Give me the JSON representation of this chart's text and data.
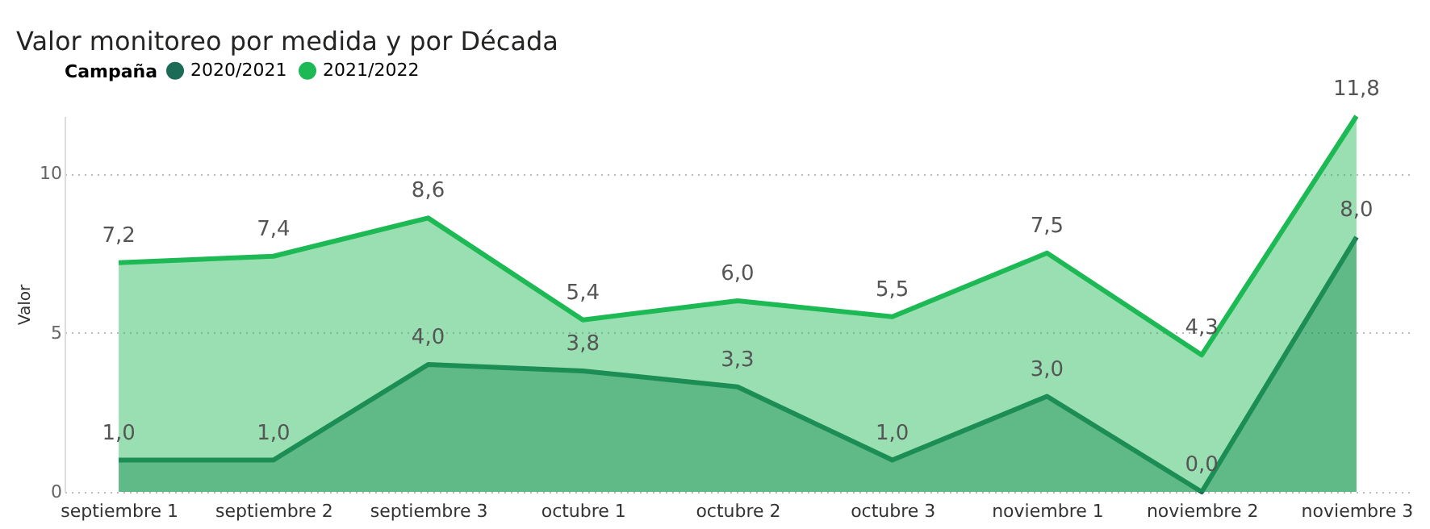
{
  "chart_data": {
    "type": "area",
    "title": "Valor monitoreo por medida y por Década",
    "ylabel": "Valor",
    "legend_title": "Campaña",
    "legend": "top left",
    "grid": "y",
    "ylim": [
      0,
      11.8
    ],
    "yticks": [
      0,
      5,
      10
    ],
    "categories": [
      "septiembre 1",
      "septiembre 2",
      "septiembre 3",
      "octubre 1",
      "octubre 2",
      "octubre 3",
      "noviembre 1",
      "noviembre 2",
      "noviembre 3"
    ],
    "series": [
      {
        "name": "2020/2021",
        "color": "#1b6b57",
        "values": [
          1.0,
          1.0,
          4.0,
          3.8,
          3.3,
          1.0,
          3.0,
          0.0,
          8.0
        ],
        "value_labels": [
          "1,0",
          "1,0",
          "4,0",
          "3,8",
          "3,3",
          "1,0",
          "3,0",
          "0,0",
          "8,0"
        ]
      },
      {
        "name": "2021/2022",
        "color": "#1db954",
        "values": [
          7.2,
          7.4,
          8.6,
          5.4,
          6.0,
          5.5,
          7.5,
          4.3,
          11.8
        ],
        "value_labels": [
          "7,2",
          "7,4",
          "8,6",
          "5,4",
          "6,0",
          "5,5",
          "7,5",
          "4,3",
          "11,8"
        ]
      }
    ]
  }
}
